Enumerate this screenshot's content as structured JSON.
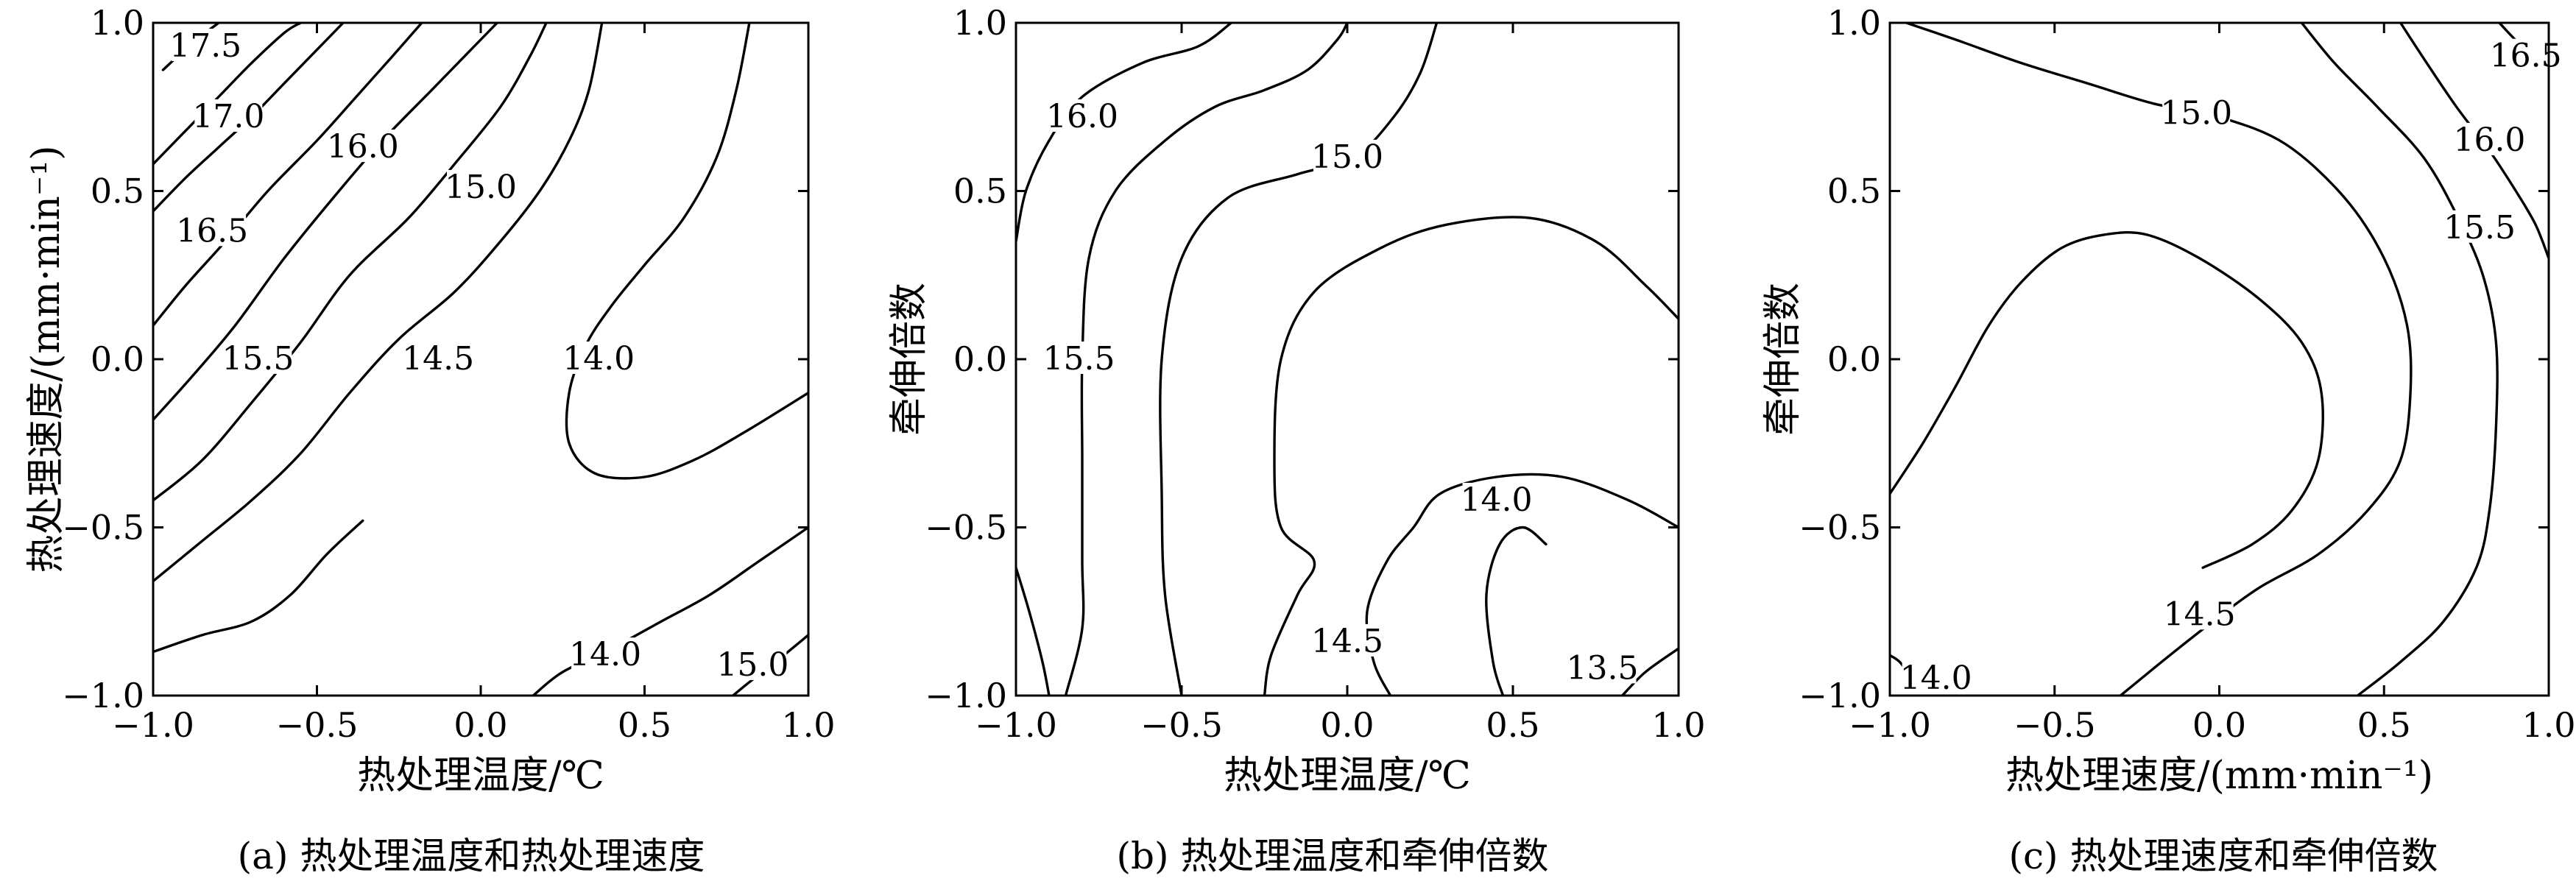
{
  "chart_data": [
    {
      "type": "contour",
      "caption": "(a) 热处理温度和热处理速度",
      "xlabel": "热处理温度/℃",
      "ylabel": "热处理速度/(mm·min⁻¹)",
      "xlim": [
        -1.0,
        1.0
      ],
      "ylim": [
        -1.0,
        1.0
      ],
      "xticks": [
        "−1.0",
        "−0.5",
        "0.0",
        "0.5",
        "1.0"
      ],
      "yticks": [
        "−1.0",
        "−0.5",
        "0.0",
        "0.5",
        "1.0"
      ],
      "contours": [
        {
          "level": "17.5",
          "points": [
            [
              -0.97,
              0.86
            ],
            [
              -0.88,
              0.94
            ],
            [
              -0.8,
              1.0
            ]
          ],
          "label_at": [
            -0.84,
            0.93
          ]
        },
        {
          "level": "17.0",
          "points": [
            [
              -1.0,
              0.58
            ],
            [
              -0.9,
              0.68
            ],
            [
              -0.8,
              0.78
            ],
            [
              -0.7,
              0.88
            ],
            [
              -0.6,
              0.97
            ],
            [
              -0.55,
              1.0
            ]
          ],
          "label_at": [
            -0.77,
            0.72
          ]
        },
        {
          "level": "16.5",
          "points": [
            [
              -1.0,
              0.44
            ],
            [
              -0.9,
              0.54
            ],
            [
              -0.8,
              0.63
            ],
            [
              -0.7,
              0.72
            ],
            [
              -0.6,
              0.82
            ],
            [
              -0.5,
              0.92
            ],
            [
              -0.42,
              1.0
            ]
          ],
          "label_at": [
            -0.82,
            0.38
          ]
        },
        {
          "level": "16.0",
          "points": [
            [
              -1.0,
              0.1
            ],
            [
              -0.9,
              0.22
            ],
            [
              -0.78,
              0.35
            ],
            [
              -0.65,
              0.5
            ],
            [
              -0.5,
              0.65
            ],
            [
              -0.38,
              0.78
            ],
            [
              -0.27,
              0.9
            ],
            [
              -0.18,
              1.0
            ]
          ],
          "label_at": [
            -0.36,
            0.63
          ]
        },
        {
          "level": "15.5",
          "points": [
            [
              -1.0,
              -0.18
            ],
            [
              -0.88,
              -0.05
            ],
            [
              -0.75,
              0.1
            ],
            [
              -0.6,
              0.3
            ],
            [
              -0.45,
              0.48
            ],
            [
              -0.3,
              0.65
            ],
            [
              -0.15,
              0.8
            ],
            [
              -0.02,
              0.93
            ],
            [
              0.05,
              1.0
            ]
          ],
          "label_at": [
            -0.68,
            0.0
          ]
        },
        {
          "level": "15.0",
          "points": [
            [
              -1.0,
              -0.42
            ],
            [
              -0.85,
              -0.3
            ],
            [
              -0.7,
              -0.13
            ],
            [
              -0.55,
              0.05
            ],
            [
              -0.4,
              0.25
            ],
            [
              -0.22,
              0.42
            ],
            [
              -0.08,
              0.58
            ],
            [
              0.06,
              0.75
            ],
            [
              0.15,
              0.9
            ],
            [
              0.2,
              1.0
            ]
          ],
          "label_at": [
            0.0,
            0.51
          ]
        },
        {
          "level": "14.5",
          "points": [
            [
              -1.0,
              -0.66
            ],
            [
              -0.85,
              -0.54
            ],
            [
              -0.7,
              -0.42
            ],
            [
              -0.55,
              -0.28
            ],
            [
              -0.4,
              -0.1
            ],
            [
              -0.25,
              0.06
            ],
            [
              -0.08,
              0.2
            ],
            [
              0.06,
              0.35
            ],
            [
              0.18,
              0.5
            ],
            [
              0.27,
              0.65
            ],
            [
              0.33,
              0.8
            ],
            [
              0.37,
              1.0
            ]
          ],
          "label_at": [
            -0.13,
            0.0
          ]
        },
        {
          "level": "14.0",
          "points": [
            [
              0.82,
              1.0
            ],
            [
              0.78,
              0.8
            ],
            [
              0.72,
              0.6
            ],
            [
              0.62,
              0.42
            ],
            [
              0.5,
              0.28
            ],
            [
              0.4,
              0.16
            ],
            [
              0.32,
              0.04
            ],
            [
              0.27,
              -0.1
            ],
            [
              0.27,
              -0.25
            ],
            [
              0.35,
              -0.34
            ],
            [
              0.5,
              -0.35
            ],
            [
              0.65,
              -0.3
            ],
            [
              0.8,
              -0.22
            ],
            [
              1.0,
              -0.1
            ]
          ],
          "label_at": [
            0.36,
            0.0
          ]
        },
        {
          "level": "14.0",
          "points": [
            [
              1.0,
              -0.5
            ],
            [
              0.85,
              -0.6
            ],
            [
              0.7,
              -0.7
            ],
            [
              0.55,
              -0.78
            ],
            [
              0.4,
              -0.86
            ],
            [
              0.25,
              -0.93
            ],
            [
              0.16,
              -1.0
            ]
          ],
          "label_at": [
            0.38,
            -0.88
          ]
        },
        {
          "level": "14.5",
          "points": [
            [
              -1.0,
              -0.87
            ],
            [
              -0.85,
              -0.82
            ],
            [
              -0.7,
              -0.78
            ],
            [
              -0.58,
              -0.7
            ],
            [
              -0.47,
              -0.58
            ],
            [
              -0.36,
              -0.48
            ]
          ],
          "label_at": null
        },
        {
          "level": "15.0",
          "points": [
            [
              1.0,
              -0.82
            ],
            [
              0.9,
              -0.9
            ],
            [
              0.82,
              -0.96
            ],
            [
              0.77,
              -1.0
            ]
          ],
          "label_at": [
            0.83,
            -0.91
          ]
        }
      ]
    },
    {
      "type": "contour",
      "caption": "(b) 热处理温度和牵伸倍数",
      "xlabel": "热处理温度/℃",
      "ylabel": "牵伸倍数",
      "xlim": [
        -1.0,
        1.0
      ],
      "ylim": [
        -1.0,
        1.0
      ],
      "xticks": [
        "−1.0",
        "−0.5",
        "0.0",
        "0.5",
        "1.0"
      ],
      "yticks": [
        "−1.0",
        "−0.5",
        "0.0",
        "0.5",
        "1.0"
      ],
      "contours": [
        {
          "level": "16.0",
          "points": [
            [
              -1.0,
              0.35
            ],
            [
              -0.97,
              0.5
            ],
            [
              -0.9,
              0.65
            ],
            [
              -0.8,
              0.78
            ],
            [
              -0.62,
              0.88
            ],
            [
              -0.45,
              0.93
            ],
            [
              -0.35,
              1.0
            ]
          ],
          "label_at": [
            -0.8,
            0.72
          ]
        },
        {
          "level": "15.5",
          "points": [
            [
              -1.0,
              -0.62
            ],
            [
              -0.96,
              -0.75
            ],
            [
              -0.92,
              -0.9
            ],
            [
              -0.9,
              -1.0
            ]
          ],
          "label_at": null
        },
        {
          "level": "15.5",
          "points": [
            [
              -0.85,
              -1.0
            ],
            [
              -0.8,
              -0.8
            ],
            [
              -0.8,
              -0.6
            ],
            [
              -0.8,
              -0.3
            ],
            [
              -0.8,
              0.0
            ],
            [
              -0.78,
              0.3
            ],
            [
              -0.7,
              0.5
            ],
            [
              -0.55,
              0.65
            ],
            [
              -0.4,
              0.75
            ],
            [
              -0.25,
              0.8
            ],
            [
              -0.12,
              0.86
            ],
            [
              -0.03,
              0.95
            ],
            [
              0.0,
              1.0
            ]
          ],
          "label_at": [
            -0.81,
            0.0
          ]
        },
        {
          "level": "15.0",
          "points": [
            [
              -0.5,
              -1.0
            ],
            [
              -0.55,
              -0.7
            ],
            [
              -0.56,
              -0.4
            ],
            [
              -0.56,
              0.0
            ],
            [
              -0.5,
              0.3
            ],
            [
              -0.36,
              0.48
            ],
            [
              -0.15,
              0.55
            ],
            [
              0.02,
              0.6
            ],
            [
              0.14,
              0.72
            ],
            [
              0.22,
              0.85
            ],
            [
              0.27,
              1.0
            ]
          ],
          "label_at": [
            0.0,
            0.6
          ]
        },
        {
          "level": "14.5",
          "points": [
            [
              -0.25,
              -1.0
            ],
            [
              -0.23,
              -0.88
            ],
            [
              -0.15,
              -0.7
            ],
            [
              -0.1,
              -0.6
            ],
            [
              -0.2,
              -0.5
            ],
            [
              -0.22,
              -0.3
            ],
            [
              -0.2,
              0.0
            ],
            [
              -0.1,
              0.2
            ],
            [
              0.1,
              0.33
            ],
            [
              0.3,
              0.4
            ],
            [
              0.55,
              0.42
            ],
            [
              0.75,
              0.35
            ],
            [
              0.9,
              0.22
            ],
            [
              1.0,
              0.12
            ]
          ],
          "label_at": [
            0.0,
            -0.84
          ]
        },
        {
          "level": "14.0",
          "points": [
            [
              0.13,
              -1.0
            ],
            [
              0.08,
              -0.9
            ],
            [
              0.06,
              -0.75
            ],
            [
              0.12,
              -0.6
            ],
            [
              0.2,
              -0.5
            ],
            [
              0.28,
              -0.4
            ],
            [
              0.45,
              -0.35
            ],
            [
              0.65,
              -0.35
            ],
            [
              0.85,
              -0.42
            ],
            [
              1.0,
              -0.5
            ]
          ],
          "label_at": [
            0.45,
            -0.42
          ]
        },
        {
          "level": "13.5",
          "points": [
            [
              0.47,
              -1.0
            ],
            [
              0.44,
              -0.9
            ],
            [
              0.42,
              -0.7
            ],
            [
              0.46,
              -0.55
            ],
            [
              0.53,
              -0.5
            ],
            [
              0.6,
              -0.55
            ]
          ],
          "label_at": null
        },
        {
          "level": "13.5",
          "points": [
            [
              0.83,
              -1.0
            ],
            [
              0.9,
              -0.93
            ],
            [
              1.0,
              -0.86
            ]
          ],
          "label_at": [
            0.77,
            -0.92
          ]
        }
      ]
    },
    {
      "type": "contour",
      "caption": "(c) 热处理速度和牵伸倍数",
      "xlabel": "热处理速度/(mm·min⁻¹)",
      "ylabel": "牵伸倍数",
      "xlim": [
        -1.0,
        1.0
      ],
      "ylim": [
        -1.0,
        1.0
      ],
      "xticks": [
        "−1.0",
        "−0.5",
        "0.0",
        "0.5",
        "1.0"
      ],
      "yticks": [
        "−1.0",
        "−0.5",
        "0.0",
        "0.5",
        "1.0"
      ],
      "contours": [
        {
          "level": "16.5",
          "points": [
            [
              0.85,
              1.0
            ],
            [
              0.92,
              0.93
            ],
            [
              1.0,
              0.88
            ]
          ],
          "label_at": [
            0.93,
            0.9
          ]
        },
        {
          "level": "16.0",
          "points": [
            [
              0.55,
              1.0
            ],
            [
              0.63,
              0.88
            ],
            [
              0.72,
              0.75
            ],
            [
              0.82,
              0.62
            ],
            [
              0.9,
              0.5
            ],
            [
              0.96,
              0.4
            ],
            [
              1.0,
              0.3
            ]
          ],
          "label_at": [
            0.82,
            0.65
          ]
        },
        {
          "level": "15.5",
          "points": [
            [
              0.25,
              1.0
            ],
            [
              0.35,
              0.88
            ],
            [
              0.48,
              0.75
            ],
            [
              0.62,
              0.6
            ],
            [
              0.72,
              0.43
            ],
            [
              0.8,
              0.25
            ],
            [
              0.84,
              0.05
            ],
            [
              0.84,
              -0.2
            ],
            [
              0.82,
              -0.45
            ],
            [
              0.78,
              -0.62
            ],
            [
              0.68,
              -0.78
            ],
            [
              0.55,
              -0.9
            ],
            [
              0.42,
              -1.0
            ]
          ],
          "label_at": [
            0.79,
            0.39
          ]
        },
        {
          "level": "15.0",
          "points": [
            [
              -0.95,
              1.0
            ],
            [
              -0.8,
              0.95
            ],
            [
              -0.6,
              0.88
            ],
            [
              -0.4,
              0.82
            ],
            [
              -0.2,
              0.76
            ],
            [
              0.0,
              0.72
            ],
            [
              0.2,
              0.64
            ],
            [
              0.38,
              0.48
            ],
            [
              0.5,
              0.3
            ],
            [
              0.57,
              0.1
            ],
            [
              0.58,
              -0.1
            ],
            [
              0.55,
              -0.3
            ],
            [
              0.45,
              -0.45
            ],
            [
              0.3,
              -0.58
            ],
            [
              0.12,
              -0.68
            ],
            [
              -0.02,
              -0.78
            ],
            [
              -0.15,
              -0.88
            ],
            [
              -0.3,
              -1.0
            ]
          ],
          "label_at": [
            -0.07,
            0.73
          ]
        },
        {
          "level": "14.5",
          "points": [
            [
              -1.0,
              -0.4
            ],
            [
              -0.9,
              -0.25
            ],
            [
              -0.8,
              -0.08
            ],
            [
              -0.7,
              0.1
            ],
            [
              -0.6,
              0.23
            ],
            [
              -0.48,
              0.33
            ],
            [
              -0.35,
              0.37
            ],
            [
              -0.22,
              0.37
            ],
            [
              -0.06,
              0.3
            ],
            [
              0.12,
              0.18
            ],
            [
              0.25,
              0.05
            ],
            [
              0.31,
              -0.1
            ],
            [
              0.3,
              -0.3
            ],
            [
              0.22,
              -0.45
            ],
            [
              0.1,
              -0.55
            ],
            [
              -0.05,
              -0.62
            ]
          ],
          "label_at": [
            -0.06,
            -0.76
          ]
        },
        {
          "level": "14.0",
          "points": [
            [
              -1.0,
              -0.88
            ],
            [
              -0.97,
              -0.9
            ],
            [
              -0.94,
              -0.94
            ]
          ],
          "label_at": [
            -0.86,
            -0.95
          ]
        }
      ]
    }
  ]
}
